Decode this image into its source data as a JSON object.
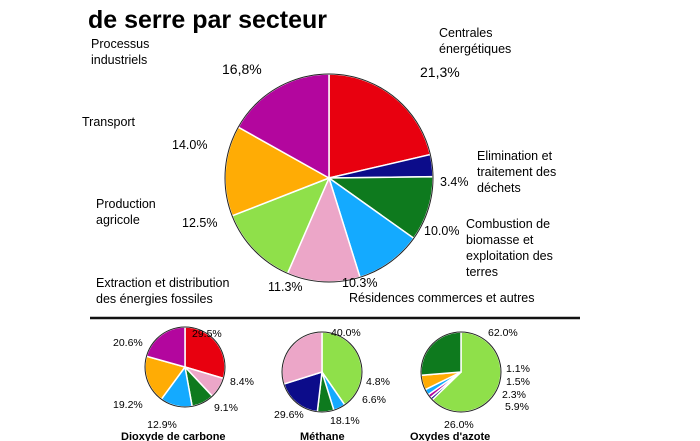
{
  "title": "de serre par secteur",
  "colors": {
    "centrales": "#e8000f",
    "elimination": "#0c0c8a",
    "combustion": "#0e7a1e",
    "residences": "#14aaff",
    "extraction": "#eca6c8",
    "agricole": "#8fe04a",
    "transport": "#ffac05",
    "industriels": "#b3069e"
  },
  "chart_data": [
    {
      "type": "pie",
      "title": "de serre par secteur",
      "slices": [
        {
          "key": "centrales",
          "label_lines": [
            "Centrales",
            "énergétiques"
          ],
          "value": 21.3,
          "value_text": "21,3%"
        },
        {
          "key": "elimination",
          "label_lines": [
            "Elimination et",
            "traitement des",
            "déchets"
          ],
          "value": 3.4,
          "value_text": "3.4%"
        },
        {
          "key": "combustion",
          "label_lines": [
            "Combustion de",
            "biomasse et",
            "exploitation des",
            "terres"
          ],
          "value": 10.0,
          "value_text": "10.0%"
        },
        {
          "key": "residences",
          "label_lines": [
            "Résidences commerces et autres"
          ],
          "value": 10.3,
          "value_text": "10.3%"
        },
        {
          "key": "extraction",
          "label_lines": [
            "Extraction et distribution",
            "des énergies fossiles"
          ],
          "value": 11.3,
          "value_text": "11.3%"
        },
        {
          "key": "agricole",
          "label_lines": [
            "Production",
            "agricole"
          ],
          "value": 12.5,
          "value_text": "12.5%"
        },
        {
          "key": "transport",
          "label_lines": [
            "Transport"
          ],
          "value": 14.0,
          "value_text": "14.0%"
        },
        {
          "key": "industriels",
          "label_lines": [
            "Processus",
            "industriels"
          ],
          "value": 16.8,
          "value_text": "16,8%"
        }
      ]
    },
    {
      "type": "pie",
      "title": "Dioxyde de carbone",
      "slices": [
        {
          "key": "centrales",
          "value": 29.5,
          "value_text": "29.5%"
        },
        {
          "key": "extraction",
          "value": 8.4,
          "value_text": "8.4%"
        },
        {
          "key": "combustion",
          "value": 9.1,
          "value_text": "9.1%"
        },
        {
          "key": "residences",
          "value": 12.9,
          "value_text": "12.9%"
        },
        {
          "key": "transport",
          "value": 19.2,
          "value_text": "19.2%"
        },
        {
          "key": "industriels",
          "value": 20.6,
          "value_text": "20.6%"
        }
      ]
    },
    {
      "type": "pie",
      "title": "Méthane",
      "slices": [
        {
          "key": "agricole",
          "value": 40.0,
          "value_text": "40.0%"
        },
        {
          "key": "residences",
          "value": 4.8,
          "value_text": "4.8%"
        },
        {
          "key": "combustion",
          "value": 6.6,
          "value_text": "6.6%"
        },
        {
          "key": "elimination",
          "value": 18.1,
          "value_text": "18.1%"
        },
        {
          "key": "extraction",
          "value": 29.6,
          "value_text": "29.6%"
        }
      ]
    },
    {
      "type": "pie",
      "title": "Oxydes d'azote",
      "slices": [
        {
          "key": "agricole",
          "value": 62.0,
          "value_text": "62.0%"
        },
        {
          "key": "elimination",
          "value": 1.1,
          "value_text": "1.1%"
        },
        {
          "key": "industriels",
          "value": 1.5,
          "value_text": "1.5%"
        },
        {
          "key": "residences",
          "value": 2.3,
          "value_text": "2.3%"
        },
        {
          "key": "transport",
          "value": 5.9,
          "value_text": "5.9%"
        },
        {
          "key": "combustion",
          "value": 26.0,
          "value_text": "26.0%"
        }
      ]
    }
  ]
}
